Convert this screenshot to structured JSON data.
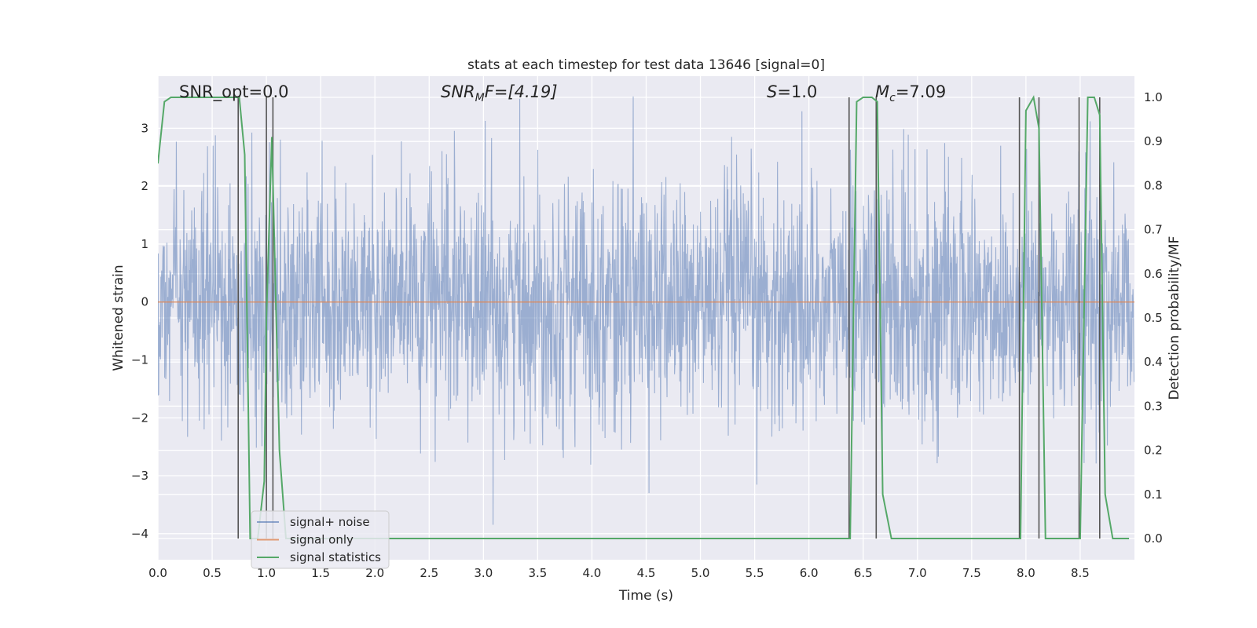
{
  "chart_data": {
    "type": "line",
    "title": "stats at each timestep for test data 13646 [signal=0]",
    "xlabel": "Time (s)",
    "ylabel": "Whitened strain",
    "y2label": "Detection probability/MF",
    "xlim": [
      0.0,
      9.0
    ],
    "ylim": [
      -4.45,
      3.9
    ],
    "y2lim": [
      -0.048,
      1.048
    ],
    "xticks": [
      "0.0",
      "0.5",
      "1.0",
      "1.5",
      "2.0",
      "2.5",
      "3.0",
      "3.5",
      "4.0",
      "4.5",
      "5.0",
      "5.5",
      "6.0",
      "6.5",
      "7.0",
      "7.5",
      "8.0",
      "8.5"
    ],
    "yticks": [
      "3",
      "2",
      "1",
      "0",
      "−1",
      "−2",
      "−3",
      "−4"
    ],
    "y2ticks": [
      "1.0",
      "0.9",
      "0.8",
      "0.7",
      "0.6",
      "0.5",
      "0.4",
      "0.3",
      "0.2",
      "0.1",
      "0.0"
    ],
    "grid": true,
    "legend_position": "lower-left",
    "annotations": {
      "snr_opt": "SNR_opt=0.0",
      "snr_mf_name": "SNR",
      "snr_mf_sub": "M",
      "snr_mf_rest": "F=[4.19]",
      "s_name": "S",
      "s_rest": "=1.0",
      "mc_name": "M",
      "mc_sub": "c",
      "mc_rest": "=7.09"
    },
    "colors": {
      "background": "#eaeaf2",
      "noise": "#4c72b0",
      "signal": "#dd8452",
      "stats": "#55a868",
      "vlines": "#555555"
    },
    "series": [
      {
        "name": "signal+ noise",
        "axis": "left",
        "description_values": "dense whitened noise, approx range -3.6 to 3.6",
        "envelope": {
          "typical_min": -2.2,
          "typical_max": 2.2,
          "extreme_min": -4.0,
          "extreme_max": 3.55
        }
      },
      {
        "name": "signal only",
        "axis": "left",
        "x": [
          0.0,
          9.0
        ],
        "y": [
          0.0,
          0.0
        ]
      },
      {
        "name": "signal statistics",
        "axis": "right",
        "x": [
          0.0,
          0.06,
          0.12,
          0.25,
          0.45,
          0.6,
          0.75,
          0.8,
          0.85,
          0.92,
          0.98,
          1.0,
          1.05,
          1.12,
          1.18,
          1.25,
          6.35,
          6.38,
          6.44,
          6.5,
          6.58,
          6.63,
          6.68,
          6.76,
          7.0,
          7.9,
          7.95,
          8.0,
          8.07,
          8.12,
          8.18,
          8.3,
          8.45,
          8.5,
          8.57,
          8.63,
          8.68,
          8.73,
          8.8,
          8.85,
          8.95
        ],
        "y": [
          0.85,
          0.99,
          1.0,
          1.0,
          1.0,
          1.0,
          1.0,
          0.87,
          0.0,
          0.0,
          0.13,
          0.5,
          0.91,
          0.2,
          0.0,
          0.0,
          0.0,
          0.0,
          0.99,
          1.0,
          1.0,
          0.99,
          0.1,
          0.0,
          0.0,
          0.0,
          0.0,
          0.97,
          1.0,
          0.93,
          0.0,
          0.0,
          0.0,
          0.0,
          1.0,
          1.0,
          0.96,
          0.1,
          0.0,
          0.0,
          0.0
        ]
      }
    ],
    "vertical_lines_x": [
      0.74,
      1.0,
      1.06,
      6.37,
      6.62,
      7.94,
      8.12,
      8.49,
      8.68
    ]
  }
}
